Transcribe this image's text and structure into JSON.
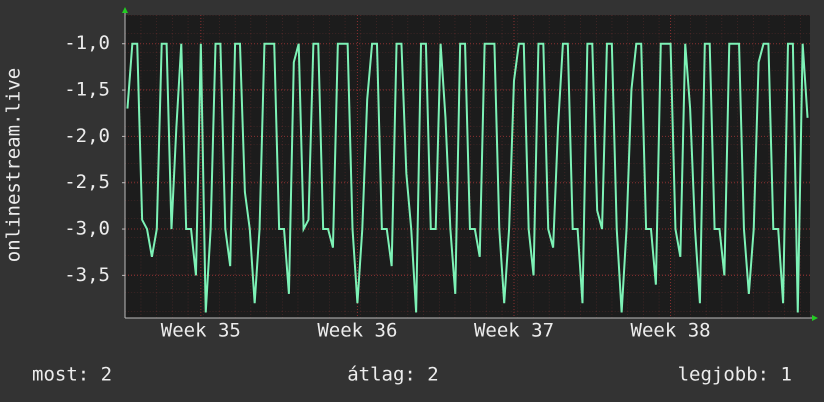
{
  "chart_data": {
    "type": "line",
    "y_label": "onlinestream.live",
    "categories": [
      null,
      null,
      null,
      null,
      null,
      null,
      null,
      null,
      null,
      null,
      null,
      null,
      null,
      null,
      null,
      "Week 35",
      null,
      null,
      null,
      null,
      null,
      null,
      null,
      null,
      null,
      null,
      null,
      null,
      null,
      null,
      null,
      null,
      null,
      null,
      null,
      null,
      null,
      null,
      null,
      null,
      null,
      null,
      null,
      null,
      null,
      null,
      null,
      "Week 36",
      null,
      null,
      null,
      null,
      null,
      null,
      null,
      null,
      null,
      null,
      null,
      null,
      null,
      null,
      null,
      null,
      null,
      null,
      null,
      null,
      null,
      null,
      null,
      null,
      null,
      null,
      null,
      null,
      null,
      null,
      null,
      "Week 37",
      null,
      null,
      null,
      null,
      null,
      null,
      null,
      null,
      null,
      null,
      null,
      null,
      null,
      null,
      null,
      null,
      null,
      null,
      null,
      null,
      null,
      null,
      null,
      null,
      null,
      null,
      null,
      null,
      null,
      null,
      null,
      "Week 38",
      null,
      null,
      null,
      null,
      null,
      null,
      null,
      null,
      null,
      null,
      null,
      null,
      null,
      null,
      null,
      null,
      null,
      null,
      null,
      null,
      null,
      null,
      null,
      null,
      null,
      null,
      null,
      null
    ],
    "series": [
      {
        "color": "#7df2b6",
        "values": [
          -1.7,
          -1,
          -1,
          -2.9,
          -3,
          -3.3,
          -3,
          -1,
          -1,
          -3,
          -1.9,
          -1,
          -3,
          -3,
          -3.5,
          -1,
          -3.9,
          -3,
          -1,
          -1,
          -3,
          -3.4,
          -1,
          -1,
          -2.6,
          -3,
          -3.8,
          -3,
          -1,
          -1,
          -1,
          -3,
          -3,
          -3.7,
          -1.2,
          -1,
          -3,
          -2.9,
          -1,
          -1,
          -3,
          -3,
          -3.2,
          -1,
          -1,
          -1,
          -3,
          -3.8,
          -3,
          -1.6,
          -1,
          -1,
          -3,
          -3,
          -3.4,
          -1,
          -1,
          -2.4,
          -3,
          -3.9,
          -1,
          -1,
          -3,
          -3,
          -1,
          -1.8,
          -3,
          -3.7,
          -1,
          -1,
          -3,
          -3,
          -3.3,
          -1,
          -1,
          -1,
          -3,
          -3.8,
          -3,
          -1.4,
          -1,
          -1,
          -3,
          -3.5,
          -1,
          -1,
          -3,
          -3.2,
          -1.9,
          -1,
          -1,
          -3,
          -3,
          -3.8,
          -1,
          -1,
          -2.8,
          -3,
          -1,
          -1,
          -3,
          -3.9,
          -3,
          -1.5,
          -1,
          -1,
          -3,
          -3,
          -3.6,
          -1,
          -1,
          -1,
          -3,
          -3.3,
          -1,
          -1.7,
          -3,
          -3.8,
          -1,
          -1,
          -3,
          -3,
          -3.5,
          -1,
          -1,
          -1,
          -3,
          -3.7,
          -3,
          -1.2,
          -1,
          -1,
          -3,
          -3,
          -3.8,
          -1,
          -1,
          -3.9,
          -1,
          -1.8
        ]
      }
    ],
    "ylim": [
      -3.96,
      -0.69
    ],
    "yticks": [
      {
        "value": -1,
        "label": "-1,0"
      },
      {
        "value": -1.5,
        "label": "-1,5"
      },
      {
        "value": -2,
        "label": "-2,0"
      },
      {
        "value": -2.5,
        "label": "-2,5"
      },
      {
        "value": -3,
        "label": "-3,0"
      },
      {
        "value": -3.5,
        "label": "-3,5"
      }
    ],
    "grid": true,
    "stats": [
      "most: 2",
      "átlag: 2",
      "legjobb: 1"
    ]
  }
}
